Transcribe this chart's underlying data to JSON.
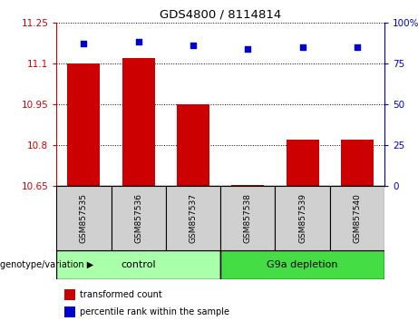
{
  "title": "GDS4800 / 8114814",
  "samples": [
    "GSM857535",
    "GSM857536",
    "GSM857537",
    "GSM857538",
    "GSM857539",
    "GSM857540"
  ],
  "bar_values": [
    11.1,
    11.12,
    10.95,
    10.655,
    10.82,
    10.82
  ],
  "percentile_values": [
    87,
    88,
    86,
    84,
    85,
    85
  ],
  "ylim_left": [
    10.65,
    11.25
  ],
  "ylim_right": [
    0,
    100
  ],
  "yticks_left": [
    10.65,
    10.8,
    10.95,
    11.1,
    11.25
  ],
  "yticks_right": [
    0,
    25,
    50,
    75,
    100
  ],
  "ytick_labels_right": [
    "0",
    "25",
    "50",
    "75",
    "100%"
  ],
  "bar_color": "#cc0000",
  "dot_color": "#0000cc",
  "grid_color": "#000000",
  "left_tick_color": "#cc0000",
  "right_tick_color": "#0000cc",
  "groups": [
    {
      "label": "control",
      "samples": [
        0,
        1,
        2
      ],
      "color": "#aaffaa"
    },
    {
      "label": "G9a depletion",
      "samples": [
        3,
        4,
        5
      ],
      "color": "#44dd44"
    }
  ],
  "group_label": "genotype/variation",
  "legend_items": [
    {
      "label": "transformed count",
      "color": "#cc0000"
    },
    {
      "label": "percentile rank within the sample",
      "color": "#0000cc"
    }
  ],
  "bar_width": 0.6,
  "sample_box_color": "#d0d0d0",
  "background_color": "#ffffff"
}
